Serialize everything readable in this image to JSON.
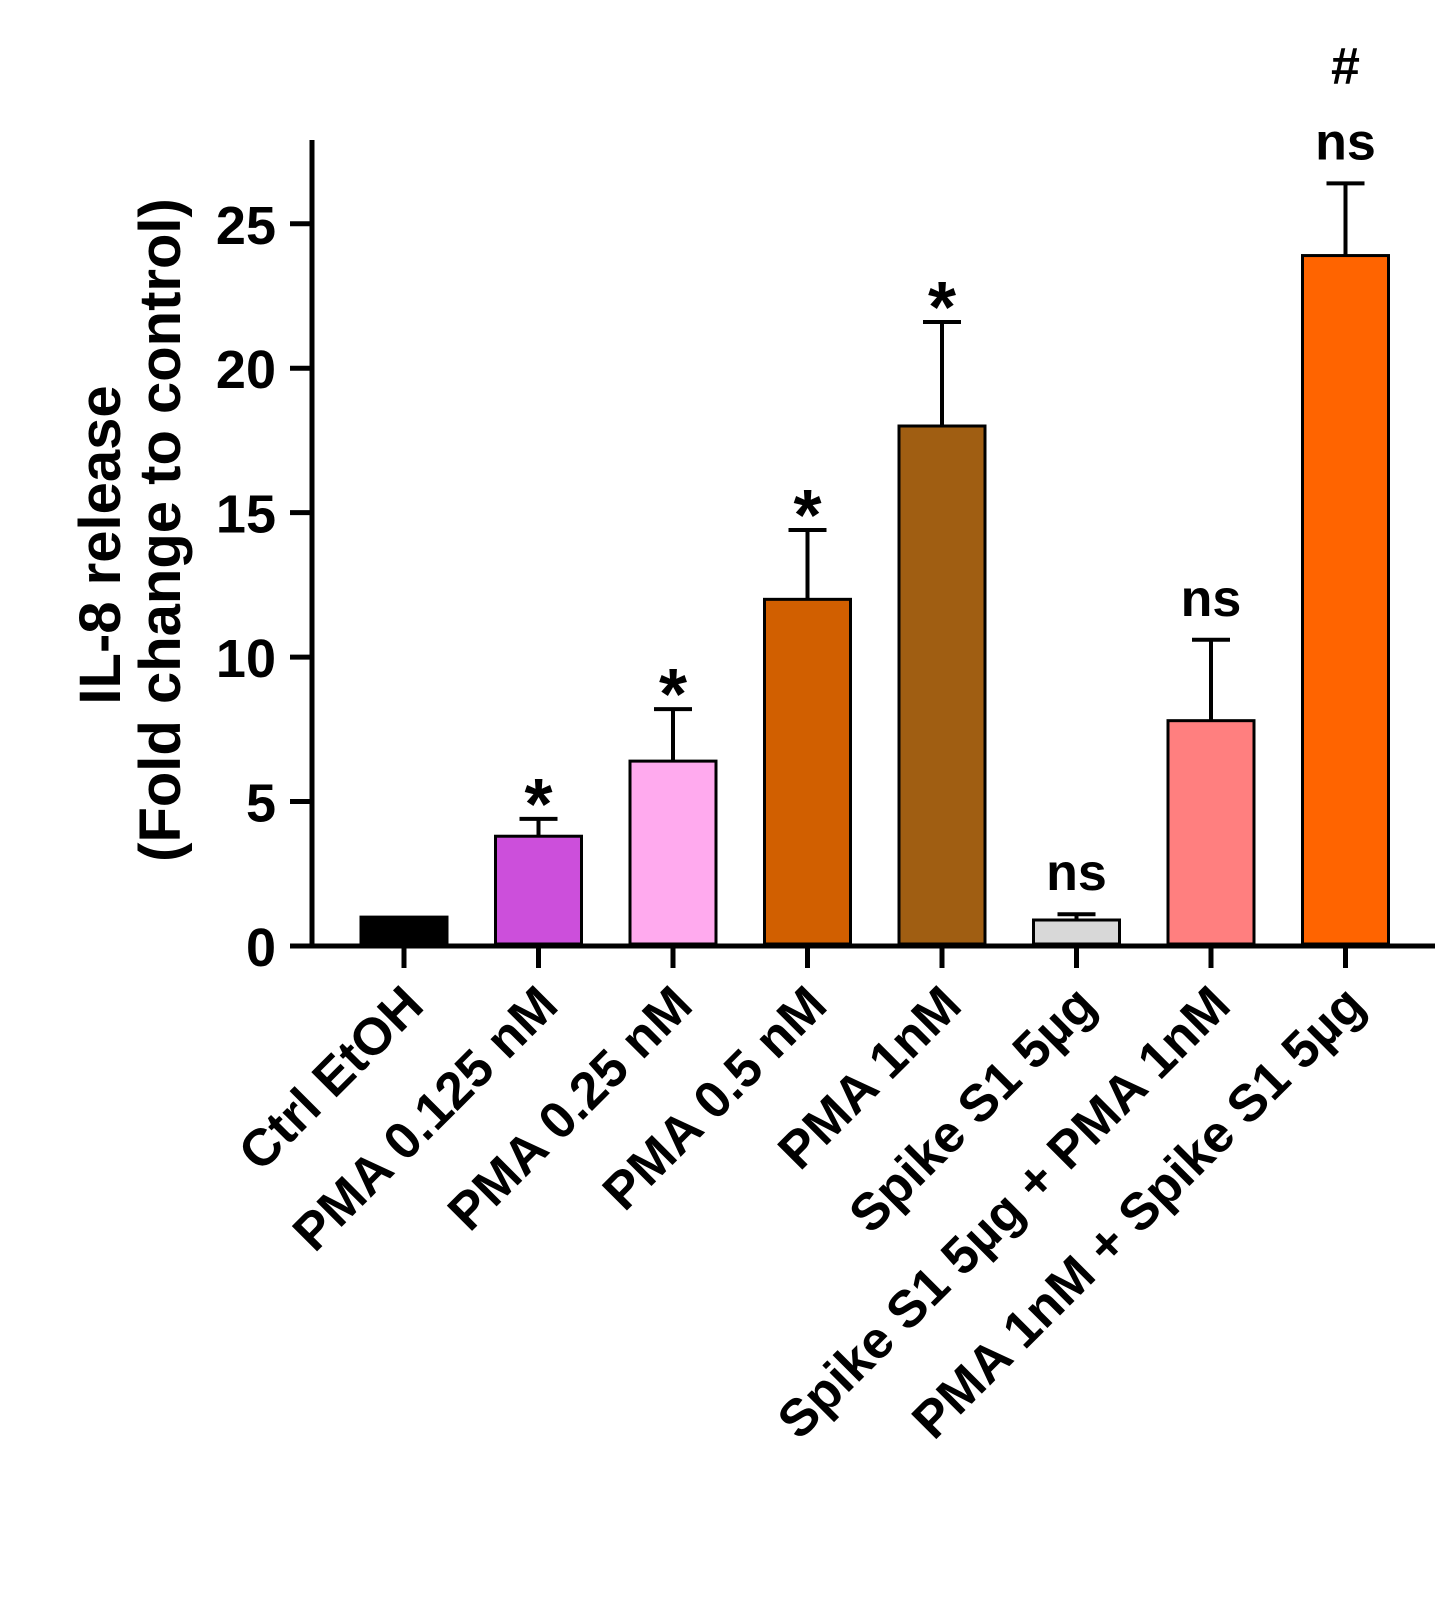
{
  "chart_data": {
    "type": "bar",
    "title": "",
    "ylabel_line1": "IL-8 release",
    "ylabel_line2": "(Fold change to control)",
    "xlabel": "",
    "ylim": [
      0,
      27.9
    ],
    "yticks": [
      0,
      5,
      10,
      15,
      20,
      25
    ],
    "ytick_labels": [
      "0",
      "5",
      "10",
      "15",
      "20",
      "25"
    ],
    "categories": [
      "Ctrl EtOH",
      "PMA 0.125 nM",
      "PMA 0.25 nM",
      "PMA 0.5 nM",
      "PMA 1nM",
      "Spike S1 5µg",
      "Spike S1 5µg + PMA 1nM",
      "PMA 1nM + Spike S1 5µg"
    ],
    "values": [
      1.0,
      3.8,
      6.4,
      12.0,
      18.0,
      0.9,
      7.8,
      23.9
    ],
    "errors": [
      0.0,
      0.6,
      1.8,
      2.4,
      3.6,
      0.2,
      2.8,
      2.5
    ],
    "colors": [
      "#000000",
      "#cc4fdb",
      "#ffaaee",
      "#d15f00",
      "#a05e12",
      "#d8d8d8",
      "#ff7f7f",
      "#ff6400"
    ],
    "annotations": [
      [],
      [
        "*"
      ],
      [
        "*"
      ],
      [
        "*"
      ],
      [
        "*"
      ],
      [
        "ns"
      ],
      [
        "ns"
      ],
      [
        "#",
        "ns"
      ]
    ]
  }
}
